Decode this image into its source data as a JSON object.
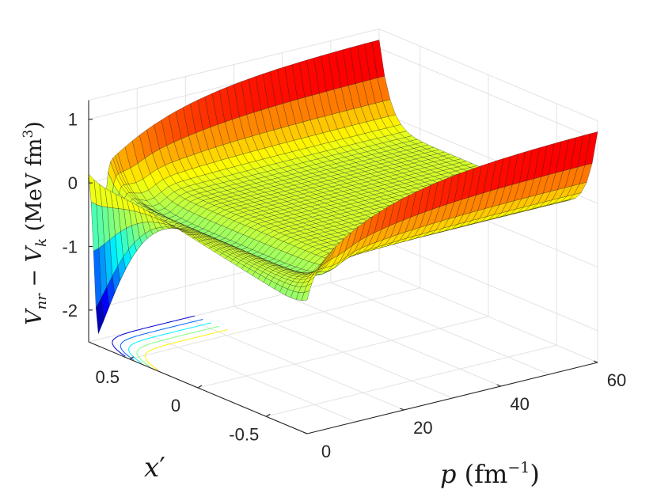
{
  "chart_data": {
    "type": "surface",
    "title": "",
    "zlabel": {
      "main": "V",
      "sub1": "nr",
      "mid": " − ",
      "main2": "V",
      "sub2": "k",
      "unit": " (MeV fm",
      "unit_sup": "3",
      "close": ")"
    },
    "ylabel": {
      "main": "x",
      "prime": "′"
    },
    "xlabel": {
      "main": "p",
      "unit": " (fm",
      "unit_sup": "−1",
      "close": ")"
    },
    "p_ticks": [
      "0",
      "20",
      "40",
      "60"
    ],
    "p_tick_values": [
      0,
      20,
      40,
      60
    ],
    "x_ticks": [
      "0.5",
      "0",
      "-0.5"
    ],
    "x_tick_values": [
      0.5,
      0,
      -0.5
    ],
    "z_ticks": [
      "1",
      "0",
      "-1",
      "-2"
    ],
    "z_tick_values": [
      1,
      0,
      -1,
      -2
    ],
    "p_range": [
      0,
      60
    ],
    "x_range": [
      -0.8,
      0.8
    ],
    "z_range": [
      -2.5,
      1.3
    ],
    "colormap": "jet",
    "grid": true,
    "surface_samples": {
      "p": [
        0,
        1,
        2,
        3,
        5,
        10,
        20,
        30,
        40,
        50
      ],
      "x": [
        0.8,
        0.4,
        0,
        -0.4,
        -0.8
      ],
      "edge_x_0.8": [
        0.1,
        -0.9,
        -2.3,
        -1.0,
        0.3,
        0.6,
        0.9,
        1.0,
        1.2,
        1.3
      ],
      "plane_floor_p_large": -0.2
    },
    "contour_levels": [
      -2,
      -1.5,
      -1,
      -0.5,
      0
    ]
  }
}
